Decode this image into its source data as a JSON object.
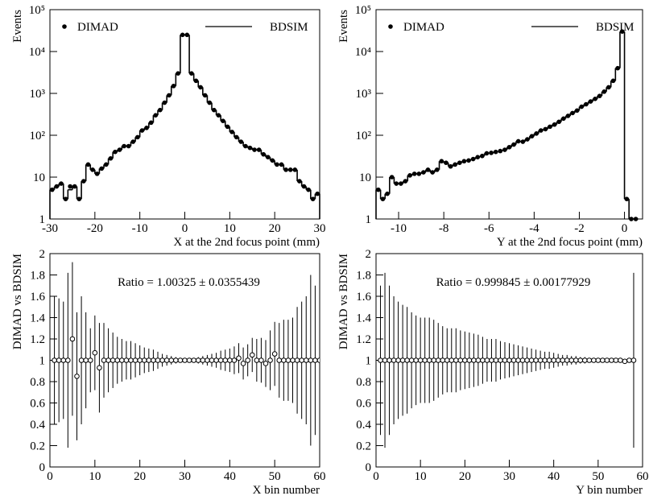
{
  "chart_data": [
    {
      "type": "histogram",
      "xlabel": "X at the 2nd focus point (mm)",
      "ylabel": "Events",
      "log_y": true,
      "legend": "top",
      "bins": [
        -30,
        -29,
        -28,
        -27,
        -26,
        -25,
        -24,
        -23,
        -22,
        -21,
        -20,
        -19,
        -18,
        -17,
        -16,
        -15,
        -14,
        -13,
        -12,
        -11,
        -10,
        -9,
        -8,
        -7,
        -6,
        -5,
        -4,
        -3,
        -2,
        -1,
        0,
        1,
        2,
        3,
        4,
        5,
        6,
        7,
        8,
        9,
        10,
        11,
        12,
        13,
        14,
        15,
        16,
        17,
        18,
        19,
        20,
        21,
        22,
        23,
        24,
        25,
        26,
        27,
        28,
        29,
        30
      ],
      "series": [
        {
          "name": "DIMAD",
          "style": "points",
          "color": "#000000",
          "values": [
            5,
            6,
            7,
            3,
            6,
            6,
            3,
            8,
            20,
            15,
            12,
            16,
            20,
            28,
            40,
            45,
            55,
            55,
            70,
            90,
            130,
            150,
            200,
            300,
            400,
            600,
            900,
            1500,
            3000,
            25000,
            25000,
            3000,
            2000,
            1400,
            900,
            600,
            400,
            300,
            220,
            160,
            120,
            90,
            70,
            55,
            50,
            45,
            45,
            35,
            30,
            25,
            20,
            20,
            15,
            15,
            15,
            8,
            6,
            5,
            3,
            4
          ]
        },
        {
          "name": "BDSIM",
          "style": "step",
          "color": "#000000",
          "values": [
            5,
            6,
            7,
            3,
            5,
            6,
            3,
            8,
            20,
            15,
            12,
            16,
            20,
            28,
            40,
            45,
            55,
            55,
            70,
            90,
            130,
            150,
            200,
            300,
            400,
            600,
            900,
            1500,
            3000,
            25000,
            25000,
            3000,
            2000,
            1400,
            900,
            600,
            400,
            300,
            220,
            160,
            120,
            90,
            70,
            55,
            50,
            45,
            45,
            35,
            30,
            25,
            20,
            20,
            15,
            15,
            15,
            8,
            6,
            5,
            3,
            4
          ]
        }
      ],
      "xlim": [
        -30,
        30
      ],
      "xticks": [
        -30,
        -20,
        -10,
        0,
        10,
        20,
        30
      ],
      "ylim": [
        1,
        100000
      ],
      "yticks": [
        1,
        10,
        {
          "value": 100,
          "label": "10²"
        },
        {
          "value": 1000,
          "label": "10³"
        },
        {
          "value": 10000,
          "label": "10⁴"
        },
        {
          "value": 100000,
          "label": "10⁵"
        }
      ]
    },
    {
      "type": "histogram",
      "xlabel": "Y at the 2nd focus point (mm)",
      "ylabel": "Events",
      "log_y": true,
      "legend": "top",
      "bins": [
        -11,
        -10.8,
        -10.6,
        -10.4,
        -10.2,
        -10,
        -9.8,
        -9.6,
        -9.4,
        -9.2,
        -9,
        -8.8,
        -8.6,
        -8.4,
        -8.2,
        -8,
        -7.8,
        -7.6,
        -7.4,
        -7.2,
        -7,
        -6.8,
        -6.6,
        -6.4,
        -6.2,
        -6,
        -5.8,
        -5.6,
        -5.4,
        -5.2,
        -5,
        -4.8,
        -4.6,
        -4.4,
        -4.2,
        -4,
        -3.8,
        -3.6,
        -3.4,
        -3.2,
        -3,
        -2.8,
        -2.6,
        -2.4,
        -2.2,
        -2,
        -1.8,
        -1.6,
        -1.4,
        -1.2,
        -1,
        -0.8,
        -0.6,
        -0.4,
        -0.2,
        0,
        0.2,
        0.4,
        0.6
      ],
      "series": [
        {
          "name": "DIMAD",
          "style": "points",
          "color": "#000000",
          "values": [
            5,
            3,
            4,
            10,
            7,
            7,
            8,
            11,
            12,
            12,
            13,
            15,
            13,
            15,
            24,
            22,
            18,
            20,
            22,
            24,
            25,
            27,
            30,
            32,
            37,
            38,
            40,
            42,
            45,
            52,
            60,
            72,
            70,
            80,
            95,
            110,
            130,
            140,
            160,
            180,
            210,
            250,
            290,
            340,
            390,
            480,
            550,
            640,
            740,
            870,
            1100,
            1400,
            2000,
            4000,
            30000,
            3,
            1,
            1
          ]
        },
        {
          "name": "BDSIM",
          "style": "step",
          "color": "#000000",
          "values": [
            5,
            3,
            4,
            10,
            7,
            7,
            8,
            11,
            12,
            12,
            13,
            15,
            13,
            15,
            24,
            22,
            18,
            20,
            22,
            24,
            25,
            27,
            30,
            32,
            37,
            38,
            40,
            42,
            45,
            52,
            60,
            72,
            70,
            80,
            95,
            110,
            130,
            140,
            160,
            180,
            210,
            250,
            290,
            340,
            390,
            480,
            550,
            640,
            740,
            870,
            1100,
            1400,
            2000,
            4000,
            30000,
            3,
            1,
            1
          ]
        }
      ],
      "xlim": [
        -11,
        0.8
      ],
      "xticks": [
        -10,
        -8,
        -6,
        -4,
        -2,
        0
      ],
      "ylim": [
        1,
        100000
      ],
      "yticks": [
        1,
        10,
        {
          "value": 100,
          "label": "10²"
        },
        {
          "value": 1000,
          "label": "10³"
        },
        {
          "value": 10000,
          "label": "10⁴"
        },
        {
          "value": 100000,
          "label": "10⁵"
        }
      ]
    },
    {
      "type": "errorbar",
      "xlabel": "X bin number",
      "ylabel": "DIMAD vs BDSIM",
      "annotation": "Ratio = 1.00325 ± 0.0355439",
      "color": "#000000",
      "x": [
        1,
        2,
        3,
        4,
        5,
        6,
        7,
        8,
        9,
        10,
        11,
        12,
        13,
        14,
        15,
        16,
        17,
        18,
        19,
        20,
        21,
        22,
        23,
        24,
        25,
        26,
        27,
        28,
        29,
        30,
        31,
        32,
        33,
        34,
        35,
        36,
        37,
        38,
        39,
        40,
        41,
        42,
        43,
        44,
        45,
        46,
        47,
        48,
        49,
        50,
        51,
        52,
        53,
        54,
        55,
        56,
        57,
        58,
        59,
        60
      ],
      "values": [
        1,
        1,
        1,
        1,
        1.2,
        0.85,
        1,
        1,
        1,
        1.07,
        0.93,
        1,
        1,
        1,
        1,
        1,
        1,
        1,
        1,
        1,
        1,
        1,
        1,
        1,
        1,
        1,
        1,
        1,
        1,
        1,
        1,
        1,
        1,
        1,
        1,
        1,
        1,
        1,
        1,
        1,
        1,
        1.02,
        0.97,
        1,
        1.05,
        1,
        1,
        0.97,
        1,
        1.06,
        1,
        1,
        1,
        1,
        1,
        1,
        1,
        1,
        1,
        1
      ],
      "errors": [
        0.6,
        0.58,
        0.55,
        0.82,
        0.72,
        0.6,
        0.6,
        0.45,
        0.3,
        0.35,
        0.42,
        0.35,
        0.3,
        0.26,
        0.22,
        0.2,
        0.18,
        0.18,
        0.16,
        0.14,
        0.12,
        0.11,
        0.1,
        0.08,
        0.06,
        0.05,
        0.04,
        0.03,
        0.02,
        0.01,
        0.01,
        0.02,
        0.03,
        0.04,
        0.05,
        0.06,
        0.07,
        0.09,
        0.1,
        0.11,
        0.13,
        0.14,
        0.15,
        0.15,
        0.16,
        0.2,
        0.21,
        0.22,
        0.28,
        0.3,
        0.35,
        0.38,
        0.38,
        0.4,
        0.5,
        0.55,
        0.6,
        0.8,
        0.7,
        0.6
      ],
      "xlim": [
        0,
        60
      ],
      "xticks": [
        0,
        10,
        20,
        30,
        40,
        50,
        60
      ],
      "ylim": [
        0,
        2
      ],
      "yticks": [
        0,
        0.2,
        0.4,
        0.6,
        0.8,
        1,
        1.2,
        1.4,
        1.6,
        1.8,
        2
      ]
    },
    {
      "type": "errorbar",
      "xlabel": "Y bin number",
      "ylabel": "DIMAD vs BDSIM",
      "annotation": "Ratio = 0.999845 ± 0.00177929",
      "color": "#000000",
      "x": [
        1,
        2,
        3,
        4,
        5,
        6,
        7,
        8,
        9,
        10,
        11,
        12,
        13,
        14,
        15,
        16,
        17,
        18,
        19,
        20,
        21,
        22,
        23,
        24,
        25,
        26,
        27,
        28,
        29,
        30,
        31,
        32,
        33,
        34,
        35,
        36,
        37,
        38,
        39,
        40,
        41,
        42,
        43,
        44,
        45,
        46,
        47,
        48,
        49,
        50,
        51,
        52,
        53,
        54,
        55,
        56,
        57,
        58
      ],
      "values": [
        1,
        1,
        1,
        1,
        1,
        1,
        1,
        1,
        1,
        1,
        1,
        1,
        1,
        1,
        1,
        1,
        1,
        1,
        1,
        1,
        1,
        1,
        1,
        1,
        1,
        1,
        1,
        1,
        1,
        1,
        1,
        1,
        1,
        1,
        1,
        1,
        1,
        1,
        1,
        1,
        1,
        1,
        1,
        1,
        1,
        1,
        1,
        1,
        1,
        1,
        1,
        1,
        1,
        1,
        1,
        0.99,
        1,
        1
      ],
      "errors": [
        0.7,
        0.82,
        0.7,
        0.6,
        0.55,
        0.52,
        0.5,
        0.45,
        0.42,
        0.4,
        0.4,
        0.4,
        0.38,
        0.35,
        0.32,
        0.3,
        0.3,
        0.3,
        0.28,
        0.27,
        0.26,
        0.25,
        0.24,
        0.22,
        0.2,
        0.2,
        0.2,
        0.18,
        0.17,
        0.16,
        0.15,
        0.14,
        0.13,
        0.12,
        0.11,
        0.1,
        0.09,
        0.08,
        0.08,
        0.07,
        0.06,
        0.05,
        0.05,
        0.04,
        0.04,
        0.03,
        0.03,
        0.02,
        0.02,
        0.02,
        0.01,
        0.01,
        0.01,
        0.01,
        0.01,
        0.01,
        0.01,
        0.82
      ],
      "xlim": [
        0,
        60
      ],
      "xticks": [
        0,
        10,
        20,
        30,
        40,
        50,
        60
      ],
      "ylim": [
        0,
        2
      ],
      "yticks": [
        0,
        0.2,
        0.4,
        0.6,
        0.8,
        1,
        1.2,
        1.4,
        1.6,
        1.8,
        2
      ]
    }
  ]
}
